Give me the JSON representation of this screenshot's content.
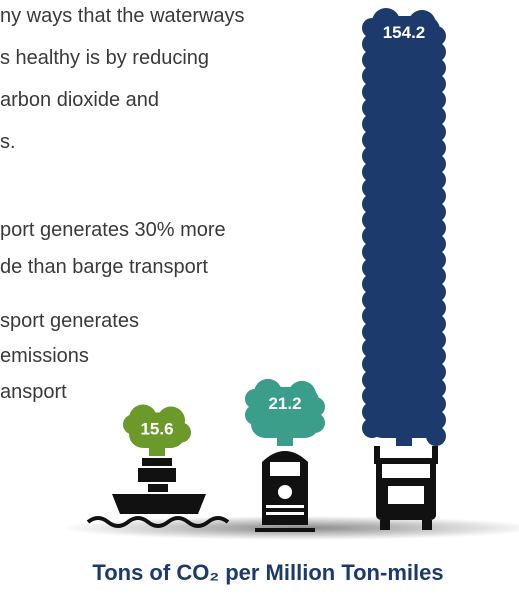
{
  "chart_data": {
    "type": "bar",
    "title": "Tons of CO₂ per Million Ton-miles",
    "annotations": [
      "ny ways that the waterways",
      "s healthy is by reducing",
      "arbon dioxide and",
      "s.",
      "port generates 30% more",
      "de than barge transport",
      "sport generates",
      "emissions",
      "ansport"
    ],
    "categories": [
      null,
      null,
      null
    ],
    "values": [
      15.6,
      21.2,
      154.2
    ],
    "colors": [
      "#6b9a2a",
      "#3a9e8a",
      "#1c3a6b"
    ]
  }
}
